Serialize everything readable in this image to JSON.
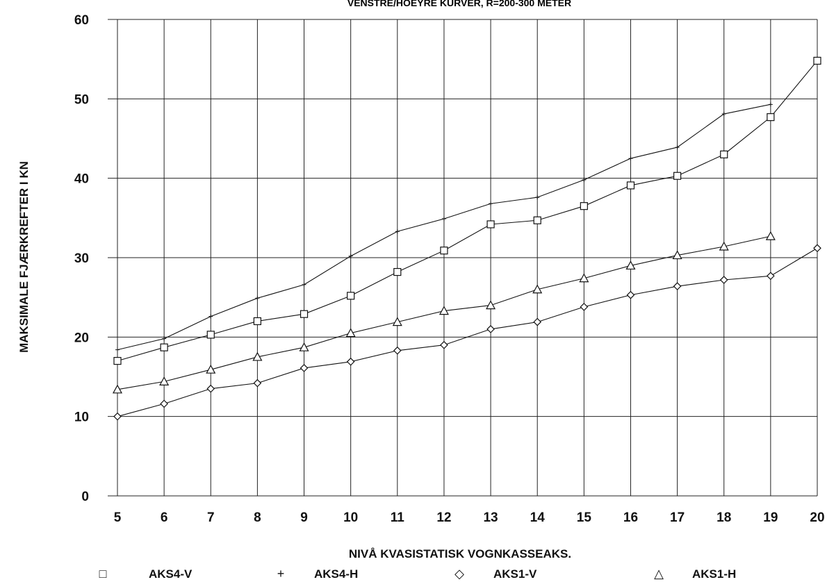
{
  "chart_data": {
    "type": "line",
    "title": "VENSTRE/HOEYRE KURVER, R=200-300 METER",
    "xlabel": "NIVÅ KVASISTATISK VOGNKASSEAKS.",
    "ylabel": "MAKSIMALE FJÆRKREFTER I KN",
    "x": [
      5,
      6,
      7,
      8,
      9,
      10,
      11,
      12,
      13,
      14,
      15,
      16,
      17,
      18,
      19,
      20
    ],
    "xlim": [
      5,
      20
    ],
    "ylim": [
      0,
      60
    ],
    "yticks": [
      0,
      10,
      20,
      30,
      40,
      50,
      60
    ],
    "grid": true,
    "legend_position": "bottom",
    "series": [
      {
        "name": "AKS4-V",
        "marker": "square",
        "symbol": "□",
        "values": [
          17.0,
          18.7,
          20.3,
          22.0,
          22.9,
          25.2,
          28.2,
          30.9,
          34.2,
          34.7,
          36.5,
          39.1,
          40.3,
          43.0,
          47.7,
          54.8
        ]
      },
      {
        "name": "AKS4-H",
        "marker": "plus",
        "symbol": "+",
        "values": [
          18.4,
          19.8,
          22.6,
          24.9,
          26.6,
          30.2,
          33.3,
          34.9,
          36.8,
          37.6,
          39.8,
          42.5,
          43.9,
          48.1,
          49.3,
          null
        ]
      },
      {
        "name": "AKS1-V",
        "marker": "diamond",
        "symbol": "◇",
        "values": [
          10.0,
          11.6,
          13.5,
          14.2,
          16.1,
          16.9,
          18.3,
          19.0,
          21.0,
          21.9,
          23.8,
          25.3,
          26.4,
          27.2,
          27.7,
          31.2
        ]
      },
      {
        "name": "AKS1-H",
        "marker": "triangle",
        "symbol": "△",
        "values": [
          13.4,
          14.4,
          15.9,
          17.5,
          18.7,
          20.5,
          21.9,
          23.3,
          24.0,
          26.0,
          27.4,
          29.0,
          30.3,
          31.4,
          32.7,
          null
        ]
      }
    ]
  }
}
